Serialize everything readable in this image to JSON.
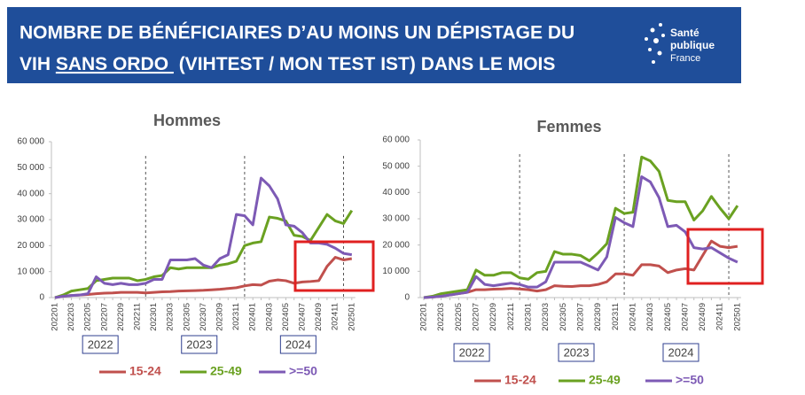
{
  "header": {
    "title_line1": "NOMBRE DE BÉNÉFICIAIRES D’AU MOINS UN DÉPISTAGE DU",
    "title_line2_start": "VIH ",
    "title_line2_underlined": "SANS ORDO ",
    "title_line2_end": " (VIHTEST / MON TEST IST) DANS LE MOIS",
    "logo": [
      "Santé",
      "publique",
      "France"
    ]
  },
  "chart_data": [
    {
      "type": "line",
      "title": "Hommes",
      "categories": [
        "202201",
        null,
        "202203",
        null,
        "202205",
        null,
        "202207",
        null,
        "202209",
        null,
        "202211",
        null,
        "202301",
        null,
        "202303",
        null,
        "202305",
        null,
        "202307",
        null,
        "202309",
        null,
        "202311",
        null,
        "202401",
        null,
        "202403",
        null,
        "202405",
        null,
        "202407",
        null,
        "202409",
        null,
        "202411",
        null,
        "202501"
      ],
      "series": [
        {
          "name": "15-24",
          "color": "#c0504d",
          "values": [
            0,
            500,
            800,
            1000,
            1200,
            1500,
            1700,
            1800,
            2000,
            2000,
            2000,
            1800,
            2000,
            2200,
            2300,
            2500,
            2600,
            2700,
            2800,
            3000,
            3200,
            3500,
            3800,
            4500,
            5000,
            4800,
            6300,
            6800,
            6500,
            5500,
            6000,
            6200,
            6500,
            12000,
            15500,
            14500,
            15000
          ]
        },
        {
          "name": "25-49",
          "color": "#6aa121",
          "values": [
            0,
            1000,
            2500,
            3000,
            3500,
            6500,
            7000,
            7500,
            7500,
            7500,
            6500,
            7000,
            8000,
            8500,
            11500,
            11000,
            11500,
            11500,
            11500,
            11500,
            12500,
            13000,
            14000,
            20000,
            21000,
            21500,
            31000,
            30500,
            29500,
            24000,
            23500,
            22000,
            27000,
            32000,
            29500,
            28500,
            33500
          ]
        },
        {
          "name": ">=50",
          "color": "#7d5ab5",
          "values": [
            0,
            500,
            800,
            1000,
            1500,
            8000,
            5500,
            5000,
            5500,
            5000,
            5000,
            5500,
            7000,
            7000,
            14500,
            14500,
            14500,
            15000,
            12500,
            11500,
            15000,
            16500,
            32000,
            31500,
            28000,
            46000,
            43000,
            38000,
            28000,
            27500,
            25000,
            21000,
            21000,
            20500,
            19000,
            17000,
            16500
          ]
        }
      ],
      "ylim": [
        0,
        60000
      ],
      "yticks": [
        0,
        {
          "value": 10000,
          "label": "10 000"
        },
        {
          "value": 20000,
          "label": "20 000"
        },
        {
          "value": 30000,
          "label": "30 000"
        },
        {
          "value": 40000,
          "label": "40 000"
        },
        {
          "value": 50000,
          "label": "50 000"
        },
        {
          "value": 60000,
          "label": "60 000"
        }
      ],
      "year_labels": [
        "2022",
        "2023",
        "2024"
      ],
      "grid": false
    },
    {
      "type": "line",
      "title": "Femmes",
      "categories": [
        "202201",
        null,
        "202203",
        null,
        "202205",
        null,
        "202207",
        null,
        "202209",
        null,
        "202211",
        null,
        "202301",
        null,
        "202303",
        null,
        "202305",
        null,
        "202307",
        null,
        "202309",
        null,
        "202311",
        null,
        "202401",
        null,
        "202403",
        null,
        "202405",
        null,
        "202407",
        null,
        "202409",
        null,
        "202411",
        null,
        "202501"
      ],
      "series": [
        {
          "name": "15-24",
          "color": "#c0504d",
          "values": [
            0,
            200,
            500,
            1000,
            1500,
            2000,
            3000,
            3000,
            3200,
            3300,
            3500,
            3300,
            3000,
            2500,
            3000,
            4500,
            4300,
            4200,
            4500,
            4500,
            5000,
            6000,
            9000,
            9000,
            8500,
            12500,
            12500,
            12000,
            9500,
            10500,
            11000,
            10500,
            16000,
            21500,
            19500,
            19000,
            19500
          ]
        },
        {
          "name": "25-49",
          "color": "#6aa121",
          "values": [
            0,
            500,
            1500,
            2000,
            2500,
            3000,
            10500,
            8500,
            8500,
            9500,
            9500,
            7500,
            7000,
            9500,
            10000,
            17500,
            16500,
            16500,
            16000,
            14000,
            17000,
            20500,
            34000,
            32000,
            32500,
            53500,
            52000,
            48000,
            37000,
            36500,
            36500,
            29500,
            33000,
            38500,
            34000,
            30000,
            35000
          ]
        },
        {
          "name": ">=50",
          "color": "#7d5ab5",
          "values": [
            0,
            200,
            500,
            1000,
            1500,
            2000,
            8000,
            5000,
            4500,
            5000,
            5500,
            5000,
            4000,
            4000,
            6000,
            13500,
            13500,
            13500,
            13500,
            12000,
            10500,
            15500,
            30500,
            28500,
            27000,
            46000,
            44000,
            38000,
            27000,
            27500,
            25000,
            19000,
            18500,
            19000,
            17000,
            15000,
            13500
          ]
        }
      ],
      "ylim": [
        0,
        60000
      ],
      "yticks": [
        0,
        {
          "value": 10000,
          "label": "10 000"
        },
        {
          "value": 20000,
          "label": "20 000"
        },
        {
          "value": 30000,
          "label": "30 000"
        },
        {
          "value": 40000,
          "label": "40 000"
        },
        {
          "value": 50000,
          "label": "50 000"
        },
        {
          "value": 60000,
          "label": "60 000"
        }
      ],
      "year_labels": [
        "2022",
        "2023",
        "2024"
      ],
      "grid": false
    }
  ]
}
